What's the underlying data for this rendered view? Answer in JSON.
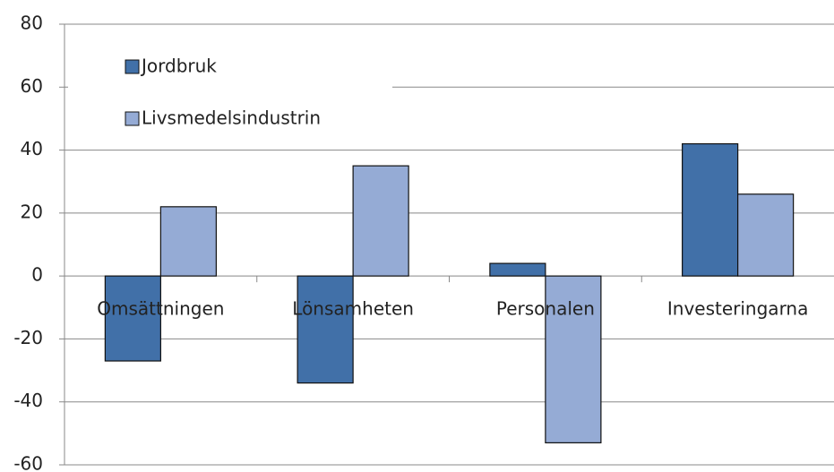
{
  "chart_data": {
    "type": "bar",
    "categories": [
      "Omsättningen",
      "Lönsamheten",
      "Personalen",
      "Investeringarna"
    ],
    "series": [
      {
        "name": "Jordbruk",
        "color": "#4170a8",
        "values": [
          -27,
          -34,
          4,
          42
        ]
      },
      {
        "name": "Livsmedelsindustrin",
        "color": "#95abd5",
        "values": [
          22,
          35,
          -53,
          26
        ]
      }
    ],
    "ylim": [
      -60,
      80
    ],
    "yticks": [
      -60,
      -40,
      -20,
      0,
      20,
      40,
      60,
      80
    ],
    "grid": true,
    "legend": "top-left"
  }
}
